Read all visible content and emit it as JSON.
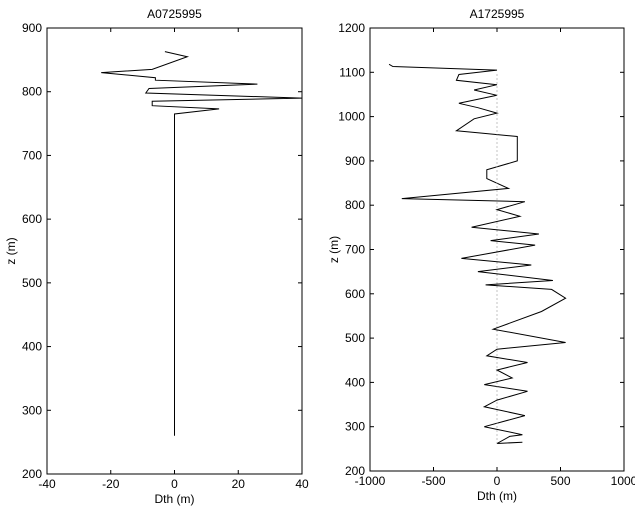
{
  "chart_data": [
    {
      "type": "line",
      "title": "A0725995",
      "xlabel": "Dth (m)",
      "ylabel": "z (m)",
      "xlim": [
        -40,
        40
      ],
      "ylim": [
        200,
        900
      ],
      "xticks": [
        -40,
        -20,
        0,
        20,
        40
      ],
      "yticks": [
        200,
        300,
        400,
        500,
        600,
        700,
        800,
        900
      ],
      "grid": false,
      "series": [
        {
          "color": "#000000",
          "points": [
            [
              0,
              260
            ],
            [
              0,
              400
            ],
            [
              0,
              600
            ],
            [
              0,
              765
            ],
            [
              14,
              773
            ],
            [
              -7,
              778
            ],
            [
              -7,
              785
            ],
            [
              40,
              790
            ],
            [
              -9,
              798
            ],
            [
              -8,
              805
            ],
            [
              26,
              812
            ],
            [
              -6,
              818
            ],
            [
              -6,
              822
            ],
            [
              -23,
              830
            ],
            [
              -7,
              835
            ],
            [
              4,
              855
            ],
            [
              -3,
              863
            ]
          ]
        }
      ]
    },
    {
      "type": "line",
      "title": "A1725995",
      "xlabel": "Dth (m)",
      "ylabel": "z (m)",
      "xlim": [
        -1000,
        1000
      ],
      "ylim": [
        200,
        1200
      ],
      "xticks": [
        -1000,
        -500,
        0,
        500,
        1000
      ],
      "yticks": [
        200,
        300,
        400,
        500,
        600,
        700,
        800,
        900,
        1000,
        1100,
        1200
      ],
      "grid": false,
      "series": [
        {
          "color": "#000000",
          "points": [
            [
              -850,
              1118
            ],
            [
              -820,
              1113
            ],
            [
              0,
              1105
            ],
            [
              -300,
              1095
            ],
            [
              -320,
              1082
            ],
            [
              0,
              1072
            ],
            [
              -180,
              1060
            ],
            [
              0,
              1048
            ],
            [
              -300,
              1030
            ],
            [
              -150,
              1020
            ],
            [
              0,
              1008
            ],
            [
              -180,
              995
            ],
            [
              -320,
              968
            ],
            [
              -100,
              962
            ],
            [
              160,
              955
            ],
            [
              160,
              900
            ],
            [
              -80,
              880
            ],
            [
              -80,
              860
            ],
            [
              90,
              838
            ],
            [
              -750,
              815
            ],
            [
              220,
              808
            ],
            [
              0,
              790
            ],
            [
              180,
              775
            ],
            [
              -200,
              750
            ],
            [
              330,
              735
            ],
            [
              -50,
              720
            ],
            [
              300,
              710
            ],
            [
              -280,
              680
            ],
            [
              270,
              665
            ],
            [
              -150,
              650
            ],
            [
              440,
              630
            ],
            [
              -90,
              620
            ],
            [
              430,
              610
            ],
            [
              540,
              590
            ],
            [
              350,
              560
            ],
            [
              -30,
              520
            ],
            [
              540,
              490
            ],
            [
              0,
              475
            ],
            [
              -80,
              460
            ],
            [
              240,
              445
            ],
            [
              0,
              428
            ],
            [
              120,
              410
            ],
            [
              -100,
              395
            ],
            [
              240,
              380
            ],
            [
              0,
              360
            ],
            [
              -100,
              345
            ],
            [
              220,
              325
            ],
            [
              -100,
              300
            ],
            [
              200,
              282
            ],
            [
              100,
              278
            ],
            [
              0,
              262
            ],
            [
              200,
              265
            ]
          ]
        },
        {
          "color": "#888888",
          "dashed": true,
          "points": [
            [
              0,
              262
            ],
            [
              0,
              1100
            ]
          ]
        }
      ]
    }
  ]
}
